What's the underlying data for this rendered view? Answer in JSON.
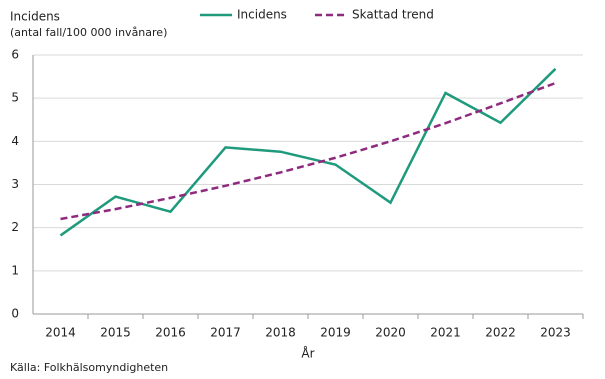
{
  "chart_data": {
    "type": "line",
    "title": "Incidens",
    "subtitle": "(antal fall/100 000 invånare)",
    "xlabel": "År",
    "source": "Källa: Folkhälsomyndigheten",
    "categories": [
      "2014",
      "2015",
      "2016",
      "2017",
      "2018",
      "2019",
      "2020",
      "2021",
      "2022",
      "2023"
    ],
    "series": [
      {
        "name": "Incidens",
        "color": "#1f9a7c",
        "dashed": false,
        "values": [
          1.82,
          2.72,
          2.37,
          3.86,
          3.76,
          3.46,
          2.58,
          5.12,
          4.43,
          5.68
        ]
      },
      {
        "name": "Skattad trend",
        "color": "#8e2b7f",
        "dashed": true,
        "values": [
          2.2,
          2.43,
          2.69,
          2.97,
          3.28,
          3.62,
          4.0,
          4.42,
          4.88,
          5.35
        ]
      }
    ],
    "ylim": [
      0,
      6
    ],
    "yticks": [
      0,
      1,
      2,
      3,
      4,
      5,
      6
    ],
    "grid": true
  }
}
